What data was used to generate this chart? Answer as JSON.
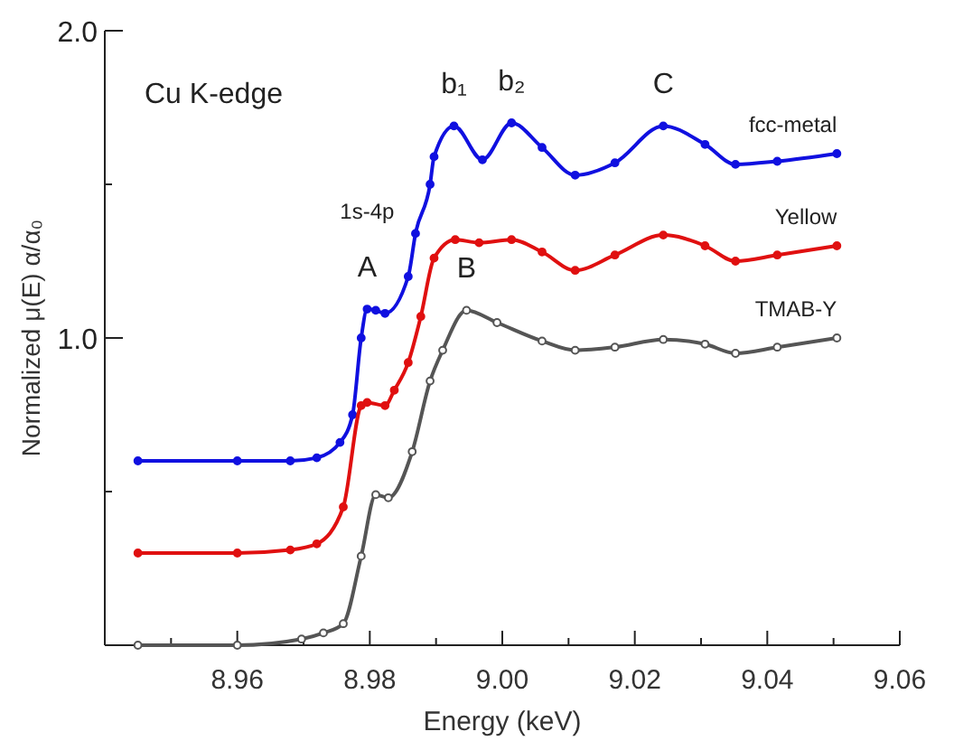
{
  "chart_data": {
    "type": "line",
    "xlabel": "Energy (keV)",
    "ylabel": "Normalized μ(E) α/α₀",
    "xlim": [
      8.94,
      9.06
    ],
    "ylim": [
      0,
      2.0
    ],
    "xticks": [
      {
        "value": 8.95,
        "label": null
      },
      8.96,
      {
        "value": 8.97,
        "label": null
      },
      8.98,
      {
        "value": 8.99,
        "label": null
      },
      {
        "value": 9.0,
        "label": "9.00"
      },
      {
        "value": 9.01,
        "label": null
      },
      9.02,
      {
        "value": 9.03,
        "label": null
      },
      9.04,
      {
        "value": 9.05,
        "label": null
      },
      9.06
    ],
    "yticks": [
      {
        "value": 0.5,
        "label": null
      },
      {
        "value": 1.0,
        "label": "1.0"
      },
      {
        "value": 1.5,
        "label": null
      },
      {
        "value": 2.0,
        "label": "2.0"
      }
    ],
    "grid": false,
    "legend": false,
    "marker": "circle",
    "line_style": "solid",
    "series": [
      {
        "name": "fcc-metal",
        "color": "#1010e0",
        "x": [
          8.945,
          8.96,
          8.968,
          8.972,
          8.9755,
          8.9774,
          8.9787,
          8.9796,
          8.9809,
          8.9823,
          8.9858,
          8.9869,
          8.9891,
          8.9897,
          8.9927,
          8.997,
          9.0014,
          9.006,
          9.011,
          9.017,
          9.0243,
          9.0306,
          9.0352,
          9.0415,
          9.0505
        ],
        "values": [
          0.6,
          0.6,
          0.6,
          0.61,
          0.66,
          0.75,
          1.0,
          1.094,
          1.09,
          1.08,
          1.2,
          1.34,
          1.5,
          1.59,
          1.69,
          1.58,
          1.7,
          1.62,
          1.53,
          1.57,
          1.69,
          1.63,
          1.565,
          1.575,
          1.6
        ]
      },
      {
        "name": "Yellow",
        "color": "#e01010",
        "x": [
          8.945,
          8.96,
          8.968,
          8.972,
          8.976,
          8.9787,
          8.9796,
          8.9823,
          8.9837,
          8.9858,
          8.9877,
          8.9897,
          8.9929,
          8.9965,
          9.0014,
          9.006,
          9.011,
          9.017,
          9.0243,
          9.0306,
          9.0352,
          9.0415,
          9.0505
        ],
        "values": [
          0.3,
          0.3,
          0.31,
          0.33,
          0.45,
          0.78,
          0.79,
          0.78,
          0.83,
          0.92,
          1.07,
          1.26,
          1.32,
          1.31,
          1.32,
          1.28,
          1.22,
          1.27,
          1.335,
          1.3,
          1.25,
          1.27,
          1.3
        ]
      },
      {
        "name": "TMAB-Y",
        "color": "#555555",
        "x": [
          8.945,
          8.96,
          8.9697,
          8.973,
          8.976,
          8.9787,
          8.9809,
          8.9828,
          8.9864,
          8.9891,
          8.991,
          8.9946,
          8.9992,
          9.006,
          9.011,
          9.017,
          9.0243,
          9.0306,
          9.0352,
          9.0415,
          9.0505
        ],
        "values": [
          0,
          0,
          0.02,
          0.04,
          0.07,
          0.29,
          0.49,
          0.48,
          0.63,
          0.86,
          0.96,
          1.09,
          1.05,
          0.99,
          0.96,
          0.97,
          0.995,
          0.98,
          0.95,
          0.97,
          1.0
        ]
      }
    ],
    "annotations": [
      "Cu K-edge",
      {
        "text": "A",
        "x": 8.9796,
        "y": 1.094
      },
      "1s-4p",
      {
        "text": "b₁",
        "x": 8.9927,
        "y": 1.69
      },
      {
        "text": "b₂",
        "x": 9.0014,
        "y": 1.7
      },
      {
        "text": "B",
        "x": 8.9946,
        "y": 1.09
      },
      {
        "text": "C",
        "x": 9.0243,
        "y": 1.69
      }
    ]
  }
}
